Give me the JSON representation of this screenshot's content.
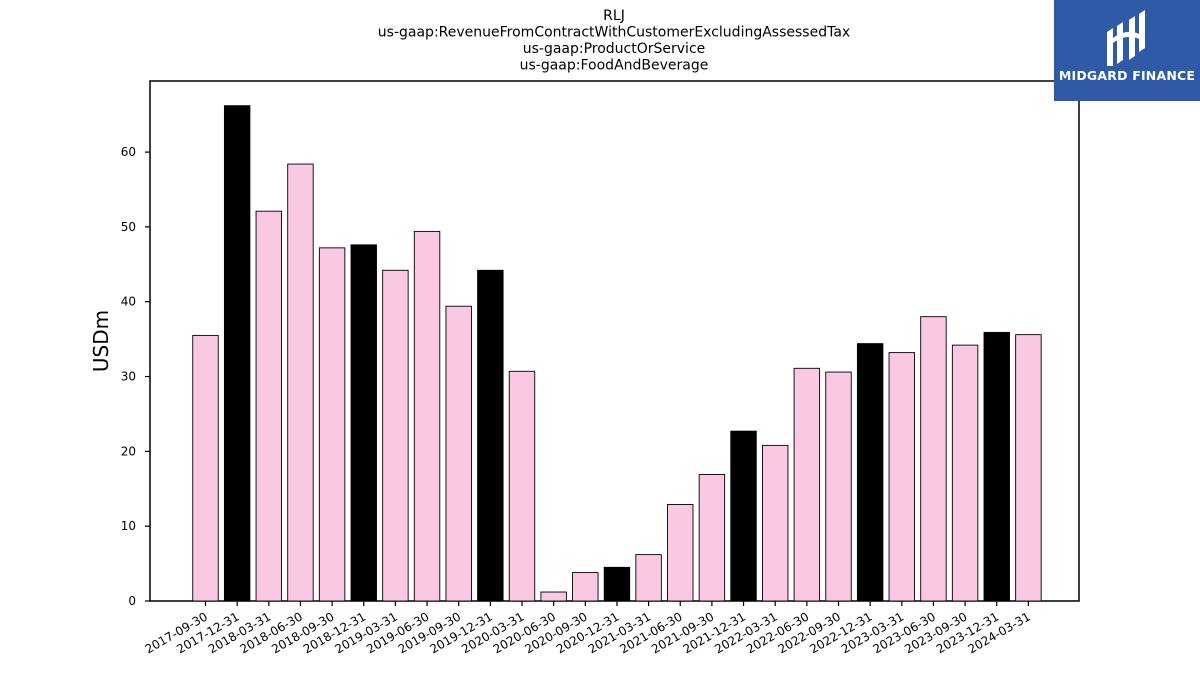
{
  "chart_data": {
    "type": "bar",
    "title": [
      "RLJ",
      "us-gaap:RevenueFromContractWithCustomerExcludingAssessedTax",
      "us-gaap:ProductOrService",
      "us-gaap:FoodAndBeverage"
    ],
    "xlabel": "",
    "ylabel": "USDm",
    "ylim": [
      0,
      69.5
    ],
    "yticks": [
      0,
      10,
      20,
      30,
      40,
      50,
      60
    ],
    "categories": [
      "2017-09-30",
      "2017-12-31",
      "2018-03-31",
      "2018-06-30",
      "2018-09-30",
      "2018-12-31",
      "2019-03-31",
      "2019-06-30",
      "2019-09-30",
      "2019-12-31",
      "2020-03-31",
      "2020-06-30",
      "2020-09-30",
      "2020-12-31",
      "2021-03-31",
      "2021-06-30",
      "2021-09-30",
      "2021-12-31",
      "2022-03-31",
      "2022-06-30",
      "2022-09-30",
      "2022-12-31",
      "2023-03-31",
      "2023-06-30",
      "2023-09-30",
      "2023-12-31",
      "2024-03-31"
    ],
    "values": [
      35.5,
      66.2,
      52.1,
      58.4,
      47.2,
      47.6,
      44.2,
      49.4,
      39.4,
      44.2,
      30.7,
      1.2,
      3.8,
      4.5,
      6.2,
      12.9,
      16.9,
      22.7,
      20.8,
      31.1,
      30.6,
      34.4,
      33.2,
      38.0,
      34.2,
      35.9,
      35.6
    ],
    "bar_colors": [
      "#fbc8e3",
      "#000000",
      "#fbc8e3",
      "#fbc8e3",
      "#fbc8e3",
      "#000000",
      "#fbc8e3",
      "#fbc8e3",
      "#fbc8e3",
      "#000000",
      "#fbc8e3",
      "#fbc8e3",
      "#fbc8e3",
      "#000000",
      "#fbc8e3",
      "#fbc8e3",
      "#fbc8e3",
      "#000000",
      "#fbc8e3",
      "#fbc8e3",
      "#fbc8e3",
      "#000000",
      "#fbc8e3",
      "#fbc8e3",
      "#fbc8e3",
      "#000000",
      "#fbc8e3"
    ],
    "grid": false,
    "legend": "none"
  },
  "logo": {
    "text": "MIDGARD FINANCE",
    "background": "#2f5aa8"
  }
}
